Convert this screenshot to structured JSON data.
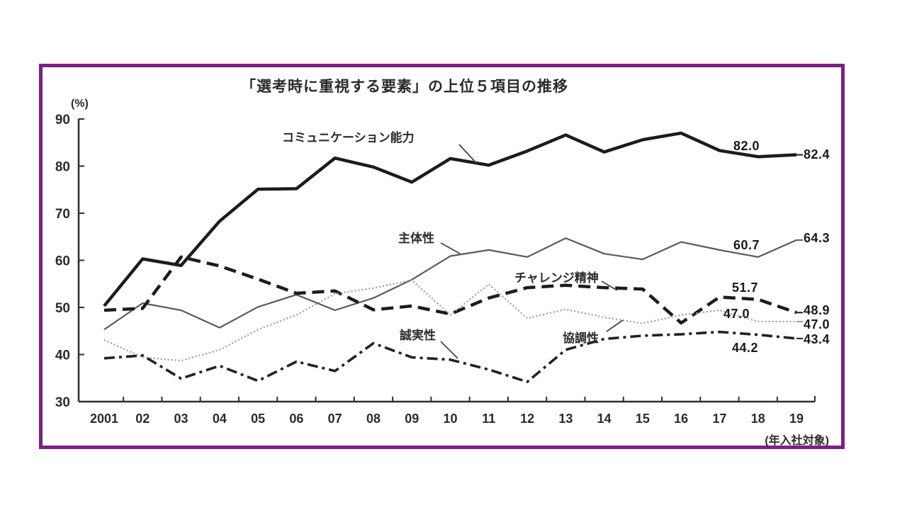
{
  "figure": {
    "title": "「選考時に重視する要素」の上位５項目の推移",
    "y_unit_label": "(%)",
    "x_axis_note": "(年入社対象)",
    "border_color": "#7b2182"
  },
  "chart_data": {
    "type": "line",
    "title": "「選考時に重視する要素」の上位５項目の推移",
    "xlabel": "年入社対象",
    "ylabel": "%",
    "ylim": [
      30,
      90
    ],
    "y_ticks": [
      30,
      40,
      50,
      60,
      70,
      80,
      90
    ],
    "grid": false,
    "legend_position": "inline-annotations",
    "x_tick_labels": [
      "2001",
      "02",
      "03",
      "04",
      "05",
      "06",
      "07",
      "08",
      "09",
      "10",
      "11",
      "12",
      "13",
      "14",
      "15",
      "16",
      "17",
      "18",
      "19"
    ],
    "series": [
      {
        "name": "コミュニケーション能力",
        "style": "solid-thick",
        "color": "#1c1c1c",
        "values": [
          50.3,
          60.3,
          58.9,
          68.3,
          75.1,
          75.2,
          81.7,
          79.8,
          76.6,
          81.6,
          80.2,
          83.2,
          86.6,
          83.0,
          85.6,
          87.0,
          83.3,
          82.0,
          82.4
        ],
        "end_labels": [
          "82.0",
          "82.4"
        ]
      },
      {
        "name": "主体性",
        "style": "solid-thin",
        "color": "#5a5a5a",
        "values": [
          45.3,
          50.9,
          49.4,
          45.7,
          50.1,
          52.7,
          49.4,
          52.0,
          55.9,
          60.9,
          62.2,
          60.7,
          64.7,
          61.4,
          60.2,
          63.9,
          62.2,
          60.7,
          64.3
        ],
        "end_labels": [
          "60.7",
          "64.3"
        ]
      },
      {
        "name": "チャレンジ精神",
        "style": "dashed-thick",
        "color": "#1c1c1c",
        "values": [
          49.4,
          49.8,
          60.7,
          58.8,
          56.0,
          53.0,
          53.5,
          49.5,
          50.3,
          48.6,
          52.0,
          54.2,
          54.7,
          54.2,
          53.9,
          46.7,
          52.2,
          51.7,
          48.9
        ],
        "end_labels": [
          "51.7",
          "48.9"
        ]
      },
      {
        "name": "協調性",
        "style": "dotted-thin",
        "color": "#9a9a9a",
        "values": [
          43.1,
          39.4,
          38.7,
          41.0,
          45.3,
          48.4,
          52.9,
          54.1,
          55.8,
          48.4,
          54.9,
          47.7,
          49.6,
          47.9,
          46.6,
          48.4,
          49.4,
          47.0,
          47.0
        ],
        "end_labels": [
          "47.0",
          "47.0"
        ]
      },
      {
        "name": "誠実性",
        "style": "dashdot",
        "color": "#222222",
        "values": [
          39.2,
          39.8,
          34.9,
          37.6,
          34.4,
          38.5,
          36.5,
          42.4,
          39.4,
          38.9,
          36.8,
          34.2,
          41.0,
          43.3,
          44.0,
          44.3,
          44.8,
          44.2,
          43.4
        ],
        "end_labels": [
          "44.2",
          "43.4"
        ]
      }
    ]
  }
}
